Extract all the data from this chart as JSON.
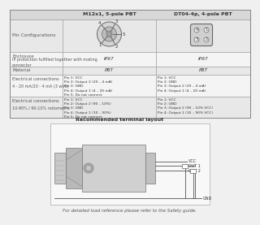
{
  "bg_color": "#f0f0f0",
  "table_bg_header": "#d8d8d8",
  "table_bg_row_light": "#e8e8e8",
  "table_bg_row_dark": "#f4f4f4",
  "table_bg_white": "#ffffff",
  "col2_header": "M12x1, 5-pole PBT",
  "col3_header": "DT04-4p, 4-pole PBT",
  "row_label_1": "Pin Configurations",
  "row_label_2": "Enclosure\nIP protection fulfilled together with mating\nconnector",
  "row_label_2a": "Enclosure",
  "row_label_2b": "IP protection fulfilled together with mating\nconnector",
  "row_label_3": "Material",
  "row_label_4a": "Electrical connections",
  "row_label_4b": "4 - 20 mA/20 - 4 mA (3 wire)",
  "row_label_5a": "Electrical connections",
  "row_label_5b": "10-90% / 90-10% ratiometric",
  "col2_ip": "IP67",
  "col3_ip": "IP67",
  "col2_mat": "PBT",
  "col3_mat": "PBT",
  "row4_col2": "Pin 1: VCC\nPin 2: Output 2 (20 – 4 mA)\nPin 3: GND\nPin 4: Output 1 (4 – 20 mA)\nPin 5: Do not connect",
  "row4_col3": "Pin 1: VCC\nPin 2: GND\nPin 3: Output 2 (20 – 4 mA)\nPin 4: Output 1 (4 – 20 mA)",
  "row5_col2": "Pin 1: VCC\nPin 2: Output 2 (90 – 10%)\nPin 3: GND\nPin 4: Output 1 (10 – 90%)\nPin 5: Do not connect",
  "row5_col3": "Pin 1: VCC\nPin 2: GND\nPin 3: Output 2 (90 – 10% VCC)\nPin 4: Output 1 (10 – 90% VCC)",
  "terminal_title": "Recommended terminal layout",
  "terminal_footer": "For detailed load reference please refer to the Safety guide.",
  "label_vcc": "VCC",
  "label_out1": "OUT 1",
  "label_out2": "OUT 2",
  "label_gnd": "GND",
  "text_dark": "#333333",
  "text_mid": "#555555",
  "text_light": "#777777",
  "border_color": "#999999",
  "diagram_line": "#666666",
  "sensor_body": "#cccccc",
  "sensor_dark": "#aaaaaa",
  "sensor_light": "#e0e0e0"
}
